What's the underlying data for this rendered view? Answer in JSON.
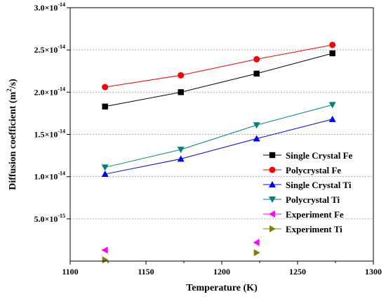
{
  "chart_data": {
    "type": "line",
    "xlabel": "Temperature (K)",
    "ylabel_main": "Diffusion coefficient (m",
    "ylabel_sup": "2",
    "ylabel_end": "/s)",
    "xlim": [
      1100,
      1300
    ],
    "ylim": [
      0,
      3e-14
    ],
    "x_ticks": [
      1100,
      1150,
      1200,
      1250,
      1300
    ],
    "x_tick_labels": [
      "1100",
      "1150",
      "1200",
      "1250",
      "1300"
    ],
    "y_ticks": [
      {
        "value": 5e-15,
        "mantissa": "5.0",
        "exp": "-15"
      },
      {
        "value": 1e-14,
        "mantissa": "1.0",
        "exp": "-14"
      },
      {
        "value": 1.5e-14,
        "mantissa": "1.5",
        "exp": "-14"
      },
      {
        "value": 2e-14,
        "mantissa": "2.0",
        "exp": "-14"
      },
      {
        "value": 2.5e-14,
        "mantissa": "2.5",
        "exp": "-14"
      },
      {
        "value": 3e-14,
        "mantissa": "3.0",
        "exp": "-14"
      }
    ],
    "y_tick_times": "×10",
    "grid": "horizontal dashed",
    "legend_position": "right",
    "series": [
      {
        "name": "Single Crystal Fe",
        "color": "#000000",
        "marker": "square",
        "line": true,
        "x": [
          1123,
          1173,
          1223,
          1273
        ],
        "y": [
          1.83e-14,
          2e-14,
          2.22e-14,
          2.46e-14
        ]
      },
      {
        "name": "Polycrystal Fe",
        "color": "#ff0000",
        "marker": "circle",
        "line": true,
        "x": [
          1123,
          1173,
          1223,
          1273
        ],
        "y": [
          2.06e-14,
          2.2e-14,
          2.39e-14,
          2.56e-14
        ]
      },
      {
        "name": "Single Crystal Ti",
        "color": "#0000ff",
        "marker": "triangle-up",
        "line": true,
        "x": [
          1123,
          1173,
          1223,
          1273
        ],
        "y": [
          1.03e-14,
          1.21e-14,
          1.45e-14,
          1.68e-14
        ]
      },
      {
        "name": "Polycrystal Ti",
        "color": "#008080",
        "marker": "triangle-down",
        "line": true,
        "x": [
          1123,
          1173,
          1223,
          1273
        ],
        "y": [
          1.11e-14,
          1.32e-14,
          1.61e-14,
          1.85e-14
        ]
      },
      {
        "name": "Experiment Fe",
        "color": "#ff00ff",
        "marker": "triangle-left",
        "line": false,
        "x": [
          1123,
          1223
        ],
        "y": [
          1.3e-15,
          2.2e-15
        ]
      },
      {
        "name": "Experiment Ti",
        "color": "#808000",
        "marker": "triangle-right",
        "line": false,
        "x": [
          1123,
          1223
        ],
        "y": [
          1.5e-16,
          1e-15
        ]
      }
    ]
  }
}
